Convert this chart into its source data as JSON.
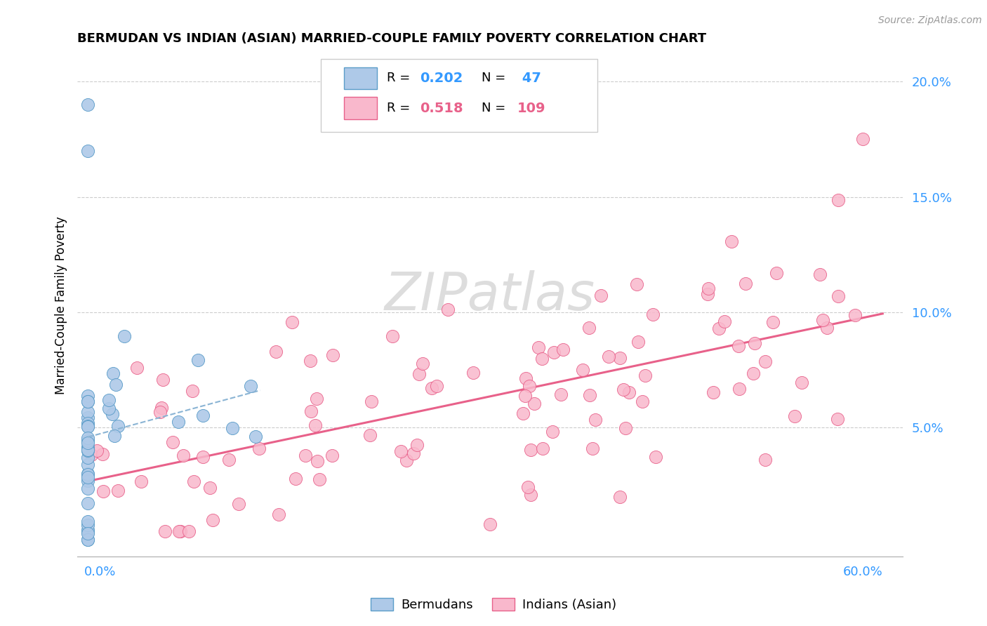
{
  "title": "BERMUDAN VS INDIAN (ASIAN) MARRIED-COUPLE FAMILY POVERTY CORRELATION CHART",
  "source": "Source: ZipAtlas.com",
  "ylabel": "Married-Couple Family Poverty",
  "blue_face": "#aec9e8",
  "blue_edge": "#5b9dc9",
  "pink_face": "#f9b8cc",
  "pink_edge": "#e8618a",
  "blue_line_color": "#8ab4d4",
  "pink_line_color": "#e8618a",
  "watermark": "ZIPatlas",
  "legend_r_blue": "0.202",
  "legend_n_blue": "47",
  "legend_r_pink": "0.518",
  "legend_n_pink": "109"
}
